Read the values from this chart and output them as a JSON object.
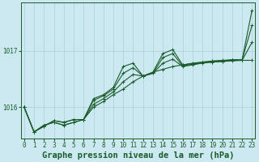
{
  "title": "Graphe pression niveau de la mer (hPa)",
  "background_color": "#cce8f0",
  "grid_color": "#aacfdb",
  "line_color": "#1a5c2a",
  "x_ticks": [
    0,
    1,
    2,
    3,
    4,
    5,
    6,
    7,
    8,
    9,
    10,
    11,
    12,
    13,
    14,
    15,
    16,
    17,
    18,
    19,
    20,
    21,
    22,
    23
  ],
  "y_ticks": [
    1016,
    1017
  ],
  "ylim": [
    1015.45,
    1017.85
  ],
  "xlim": [
    -0.3,
    23.3
  ],
  "series": [
    [
      1016.0,
      1015.56,
      1015.66,
      1015.76,
      1015.73,
      1015.78,
      1015.78,
      1016.0,
      1016.1,
      1016.22,
      1016.32,
      1016.45,
      1016.55,
      1016.62,
      1016.67,
      1016.72,
      1016.75,
      1016.77,
      1016.79,
      1016.8,
      1016.81,
      1016.82,
      1016.83,
      1016.83
    ],
    [
      1016.0,
      1015.56,
      1015.66,
      1015.76,
      1015.73,
      1015.78,
      1015.78,
      1016.15,
      1016.22,
      1016.35,
      1016.72,
      1016.78,
      1016.55,
      1016.62,
      1016.95,
      1017.02,
      1016.75,
      1016.78,
      1016.8,
      1016.82,
      1016.83,
      1016.84,
      1016.84,
      1017.72
    ],
    [
      1016.0,
      1015.56,
      1015.68,
      1015.73,
      1015.68,
      1015.73,
      1015.78,
      1016.05,
      1016.15,
      1016.27,
      1016.45,
      1016.58,
      1016.55,
      1016.6,
      1016.78,
      1016.85,
      1016.72,
      1016.75,
      1016.78,
      1016.8,
      1016.81,
      1016.83,
      1016.83,
      1017.15
    ],
    [
      1016.0,
      1015.56,
      1015.68,
      1015.73,
      1015.68,
      1015.73,
      1015.78,
      1016.12,
      1016.2,
      1016.32,
      1016.6,
      1016.7,
      1016.55,
      1016.6,
      1016.88,
      1016.95,
      1016.73,
      1016.76,
      1016.79,
      1016.81,
      1016.82,
      1016.84,
      1016.84,
      1017.45
    ]
  ],
  "marker": "+",
  "markersize": 3.5,
  "linewidth": 0.8,
  "title_fontsize": 7.5,
  "tick_fontsize": 5.5
}
